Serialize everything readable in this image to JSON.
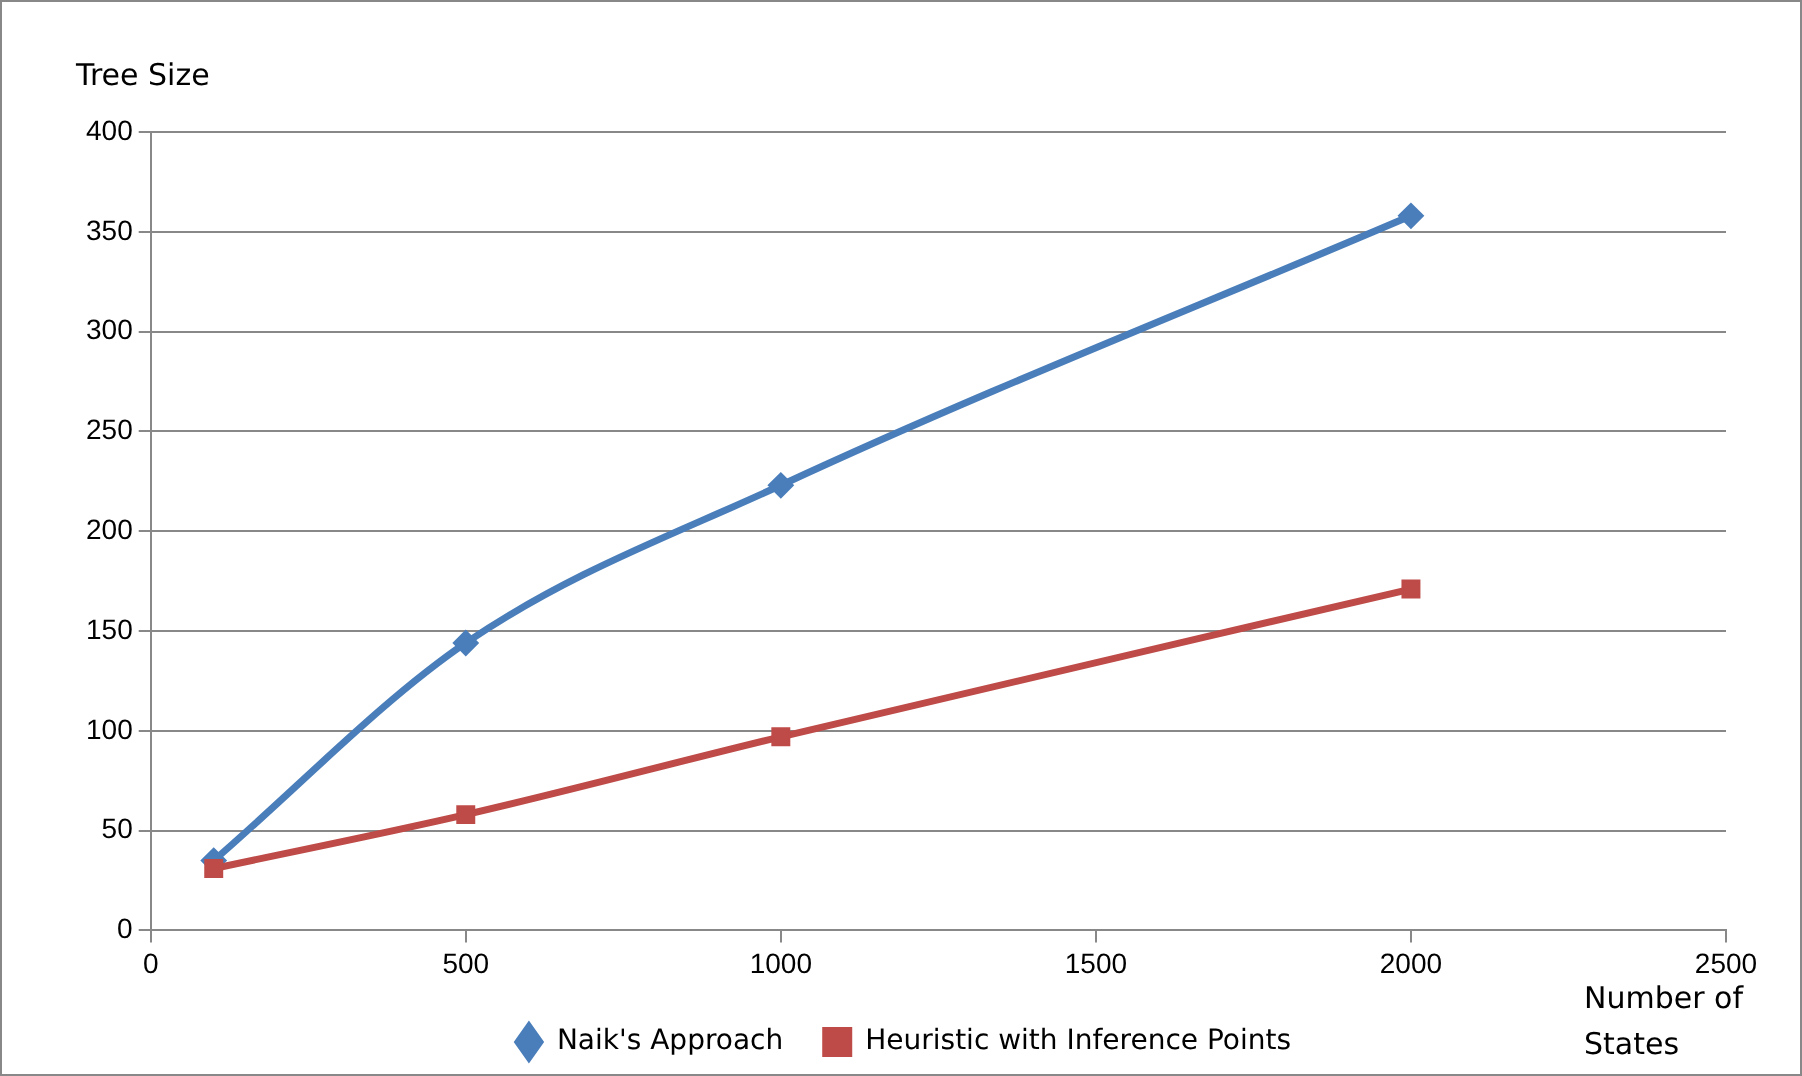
{
  "chart_data": {
    "type": "line",
    "xlabel": "Number of States",
    "ylabel": "Tree Size",
    "xlim": [
      0,
      2500
    ],
    "xticks": [
      0,
      500,
      1000,
      1500,
      2000,
      2500
    ],
    "ylim": [
      0,
      400
    ],
    "yticks": [
      0,
      50,
      100,
      150,
      200,
      250,
      300,
      350,
      400
    ],
    "x": [
      100,
      500,
      1000,
      2000
    ],
    "series": [
      {
        "name": "Naik's Approach",
        "color": "#4a7ebb",
        "marker": "diamond",
        "values": [
          35,
          144,
          223,
          358
        ]
      },
      {
        "name": "Heuristic with Inference Points",
        "color": "#be4b48",
        "marker": "square",
        "values": [
          31,
          58,
          97,
          171
        ]
      }
    ],
    "grid": "y",
    "legend": "bottom",
    "line_style": "solid"
  }
}
